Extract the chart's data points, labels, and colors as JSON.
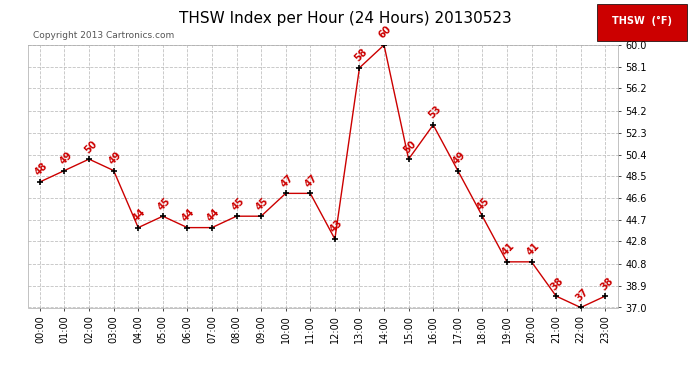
{
  "title": "THSW Index per Hour (24 Hours) 20130523",
  "copyright": "Copyright 2013 Cartronics.com",
  "legend_label": "THSW  (°F)",
  "hours": [
    0,
    1,
    2,
    3,
    4,
    5,
    6,
    7,
    8,
    9,
    10,
    11,
    12,
    13,
    14,
    15,
    16,
    17,
    18,
    19,
    20,
    21,
    22,
    23
  ],
  "values": [
    48,
    49,
    50,
    49,
    44,
    45,
    44,
    44,
    45,
    45,
    47,
    47,
    43,
    58,
    60,
    50,
    53,
    49,
    45,
    41,
    41,
    38,
    37,
    38
  ],
  "ylim_min": 37.0,
  "ylim_max": 60.0,
  "yticks": [
    37.0,
    38.9,
    40.8,
    42.8,
    44.7,
    46.6,
    48.5,
    50.4,
    52.3,
    54.2,
    56.2,
    58.1,
    60.0
  ],
  "line_color": "#cc0000",
  "marker_color": "#000000",
  "bg_color": "#ffffff",
  "grid_color": "#bbbbbb",
  "title_fontsize": 11,
  "label_fontsize": 7,
  "annotation_fontsize": 7,
  "legend_bg": "#cc0000",
  "legend_text_color": "#ffffff"
}
